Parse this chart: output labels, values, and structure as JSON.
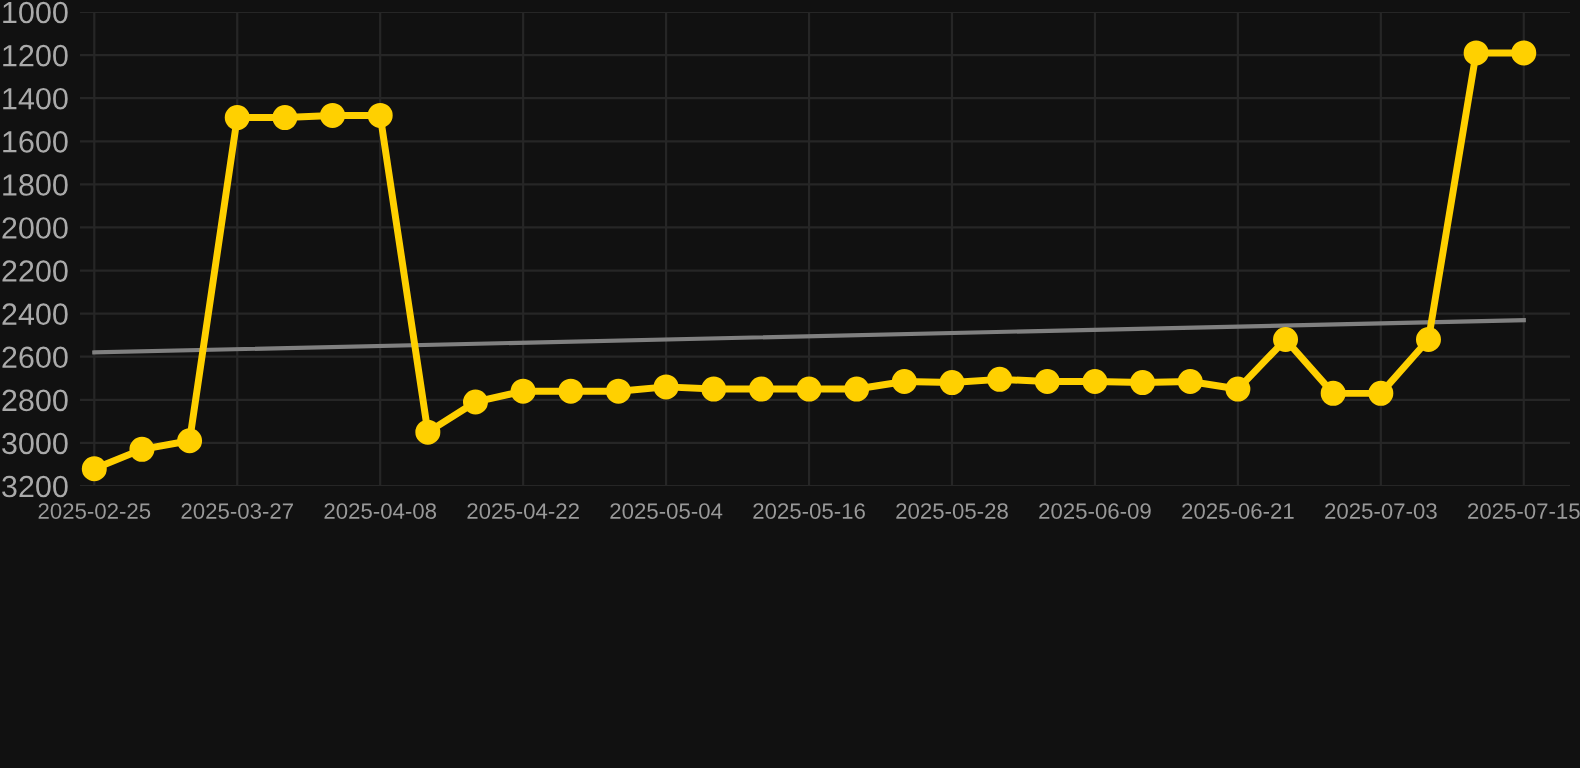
{
  "chart_data": {
    "type": "line",
    "categories": [
      "2025-02-25",
      null,
      null,
      "2025-03-27",
      null,
      null,
      "2025-04-08",
      null,
      null,
      "2025-04-22",
      null,
      null,
      "2025-05-04",
      null,
      null,
      "2025-05-16",
      null,
      null,
      "2025-05-28",
      null,
      null,
      "2025-06-09",
      null,
      null,
      "2025-06-21",
      null,
      null,
      "2025-07-03",
      null,
      null,
      "2025-07-15"
    ],
    "series": [
      {
        "color": "#ffd000",
        "marker": "circle",
        "values": [
          3120,
          3030,
          2990,
          1490,
          1490,
          1480,
          1480,
          2950,
          2810,
          2760,
          2760,
          2760,
          2740,
          2750,
          2750,
          2750,
          2750,
          2715,
          2720,
          2705,
          2715,
          2715,
          2720,
          2715,
          2750,
          2520,
          2770,
          2770,
          2520,
          1190,
          1190
        ]
      },
      {
        "color": "#808080",
        "marker": "none",
        "values": [
          2580,
          null,
          null,
          null,
          null,
          null,
          null,
          null,
          null,
          null,
          null,
          null,
          null,
          null,
          null,
          null,
          null,
          null,
          null,
          null,
          null,
          null,
          null,
          null,
          null,
          null,
          null,
          null,
          null,
          null,
          2430
        ]
      }
    ],
    "ylim": [
      3200,
      1000
    ],
    "yticks": [
      1000,
      1200,
      1400,
      1600,
      1800,
      2000,
      2200,
      2400,
      2600,
      2800,
      3000,
      3200
    ],
    "grid": true,
    "line_style": "solid"
  }
}
